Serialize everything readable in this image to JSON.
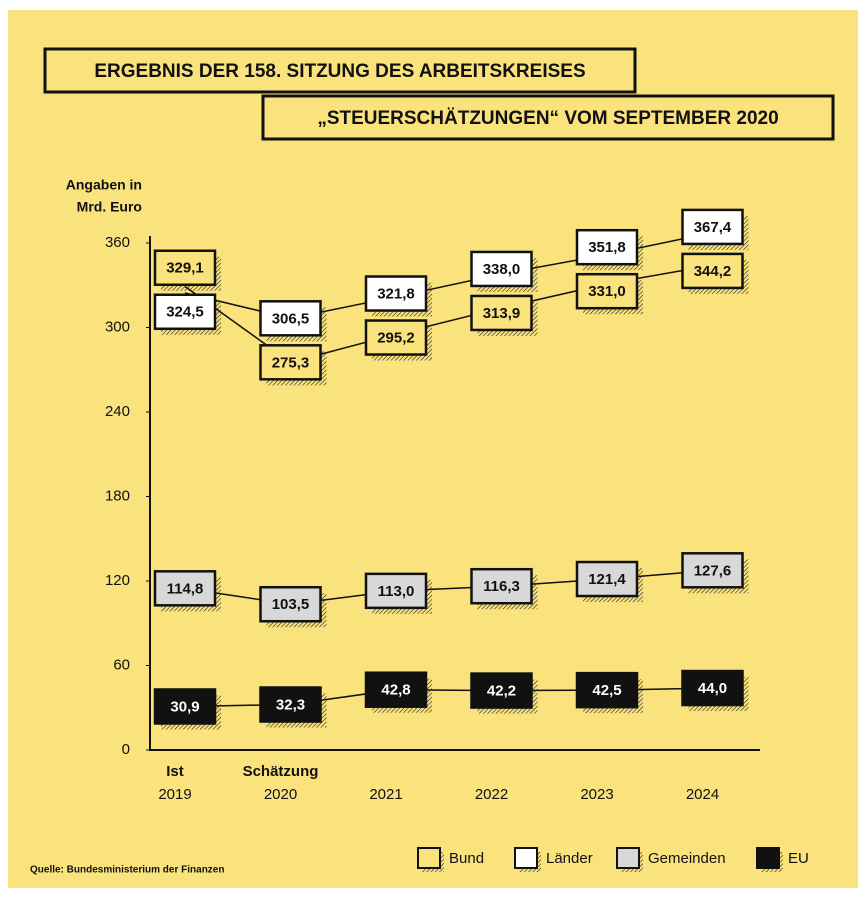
{
  "chart_data": {
    "type": "line",
    "title": [
      "ERGEBNIS DER 158. SITZUNG DES ARBEITSKREISES",
      "„STEUERSCHÄTZUNGEN“ VOM SEPTEMBER 2020"
    ],
    "y_label": [
      "Angaben in",
      "Mrd. Euro"
    ],
    "categories": [
      "2019",
      "2020",
      "2021",
      "2022",
      "2023",
      "2024"
    ],
    "annotations": [
      {
        "text": "Ist",
        "category": "2019"
      },
      {
        "text": "Schätzung",
        "category": "2020"
      }
    ],
    "source": "Quelle: Bundesministerium der Finanzen",
    "ylim": [
      0,
      360
    ],
    "yticks": [
      0,
      60,
      120,
      180,
      240,
      300,
      360
    ],
    "series": [
      {
        "name": "Bund",
        "color": "#fae27c",
        "text_color": "#111111",
        "values": [
          329.1,
          275.3,
          295.2,
          313.9,
          331,
          344.2
        ],
        "value_labels": [
          "329,1",
          "275,3",
          "295,2",
          "313,9",
          "331,0",
          "344,2"
        ]
      },
      {
        "name": "Länder",
        "color": "#ffffff",
        "text_color": "#111111",
        "values": [
          324.5,
          306.5,
          321.8,
          338,
          351.8,
          367.4
        ],
        "value_labels": [
          "324,5",
          "306,5",
          "321,8",
          "338,0",
          "351,8",
          "367,4"
        ]
      },
      {
        "name": "Gemeinden",
        "color": "#d8d8d8",
        "text_color": "#111111",
        "values": [
          114.8,
          103.5,
          113,
          116.3,
          121.4,
          127.6
        ],
        "value_labels": [
          "114,8",
          "103,5",
          "113,0",
          "116,3",
          "121,4",
          "127,6"
        ]
      },
      {
        "name": "EU",
        "color": "#111111",
        "text_color": "#ffffff",
        "values": [
          30.9,
          32.3,
          42.8,
          42.2,
          42.5,
          44
        ],
        "value_labels": [
          "30,9",
          "32,3",
          "42,8",
          "42,2",
          "42,5",
          "44,0"
        ]
      }
    ]
  }
}
